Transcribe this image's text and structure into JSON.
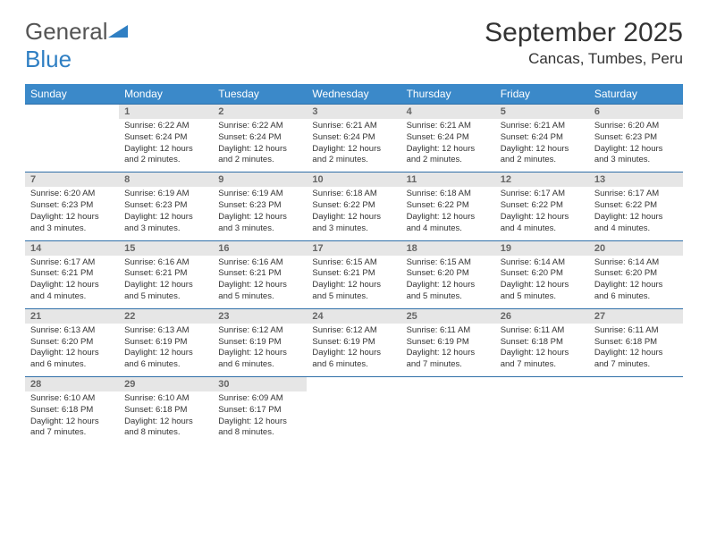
{
  "logo": {
    "word1": "General",
    "word2": "Blue",
    "logo_color": "#2f7fc3"
  },
  "title": "September 2025",
  "location": "Cancas, Tumbes, Peru",
  "header_bg": "#3b89c9",
  "daynum_bg": "#e6e6e6",
  "border_color": "#2f6fa8",
  "text_color": "#333333",
  "day_names": [
    "Sunday",
    "Monday",
    "Tuesday",
    "Wednesday",
    "Thursday",
    "Friday",
    "Saturday"
  ],
  "weeks": [
    [
      {
        "n": "",
        "lines": []
      },
      {
        "n": "1",
        "lines": [
          "Sunrise: 6:22 AM",
          "Sunset: 6:24 PM",
          "Daylight: 12 hours",
          "and 2 minutes."
        ]
      },
      {
        "n": "2",
        "lines": [
          "Sunrise: 6:22 AM",
          "Sunset: 6:24 PM",
          "Daylight: 12 hours",
          "and 2 minutes."
        ]
      },
      {
        "n": "3",
        "lines": [
          "Sunrise: 6:21 AM",
          "Sunset: 6:24 PM",
          "Daylight: 12 hours",
          "and 2 minutes."
        ]
      },
      {
        "n": "4",
        "lines": [
          "Sunrise: 6:21 AM",
          "Sunset: 6:24 PM",
          "Daylight: 12 hours",
          "and 2 minutes."
        ]
      },
      {
        "n": "5",
        "lines": [
          "Sunrise: 6:21 AM",
          "Sunset: 6:24 PM",
          "Daylight: 12 hours",
          "and 2 minutes."
        ]
      },
      {
        "n": "6",
        "lines": [
          "Sunrise: 6:20 AM",
          "Sunset: 6:23 PM",
          "Daylight: 12 hours",
          "and 3 minutes."
        ]
      }
    ],
    [
      {
        "n": "7",
        "lines": [
          "Sunrise: 6:20 AM",
          "Sunset: 6:23 PM",
          "Daylight: 12 hours",
          "and 3 minutes."
        ]
      },
      {
        "n": "8",
        "lines": [
          "Sunrise: 6:19 AM",
          "Sunset: 6:23 PM",
          "Daylight: 12 hours",
          "and 3 minutes."
        ]
      },
      {
        "n": "9",
        "lines": [
          "Sunrise: 6:19 AM",
          "Sunset: 6:23 PM",
          "Daylight: 12 hours",
          "and 3 minutes."
        ]
      },
      {
        "n": "10",
        "lines": [
          "Sunrise: 6:18 AM",
          "Sunset: 6:22 PM",
          "Daylight: 12 hours",
          "and 3 minutes."
        ]
      },
      {
        "n": "11",
        "lines": [
          "Sunrise: 6:18 AM",
          "Sunset: 6:22 PM",
          "Daylight: 12 hours",
          "and 4 minutes."
        ]
      },
      {
        "n": "12",
        "lines": [
          "Sunrise: 6:17 AM",
          "Sunset: 6:22 PM",
          "Daylight: 12 hours",
          "and 4 minutes."
        ]
      },
      {
        "n": "13",
        "lines": [
          "Sunrise: 6:17 AM",
          "Sunset: 6:22 PM",
          "Daylight: 12 hours",
          "and 4 minutes."
        ]
      }
    ],
    [
      {
        "n": "14",
        "lines": [
          "Sunrise: 6:17 AM",
          "Sunset: 6:21 PM",
          "Daylight: 12 hours",
          "and 4 minutes."
        ]
      },
      {
        "n": "15",
        "lines": [
          "Sunrise: 6:16 AM",
          "Sunset: 6:21 PM",
          "Daylight: 12 hours",
          "and 5 minutes."
        ]
      },
      {
        "n": "16",
        "lines": [
          "Sunrise: 6:16 AM",
          "Sunset: 6:21 PM",
          "Daylight: 12 hours",
          "and 5 minutes."
        ]
      },
      {
        "n": "17",
        "lines": [
          "Sunrise: 6:15 AM",
          "Sunset: 6:21 PM",
          "Daylight: 12 hours",
          "and 5 minutes."
        ]
      },
      {
        "n": "18",
        "lines": [
          "Sunrise: 6:15 AM",
          "Sunset: 6:20 PM",
          "Daylight: 12 hours",
          "and 5 minutes."
        ]
      },
      {
        "n": "19",
        "lines": [
          "Sunrise: 6:14 AM",
          "Sunset: 6:20 PM",
          "Daylight: 12 hours",
          "and 5 minutes."
        ]
      },
      {
        "n": "20",
        "lines": [
          "Sunrise: 6:14 AM",
          "Sunset: 6:20 PM",
          "Daylight: 12 hours",
          "and 6 minutes."
        ]
      }
    ],
    [
      {
        "n": "21",
        "lines": [
          "Sunrise: 6:13 AM",
          "Sunset: 6:20 PM",
          "Daylight: 12 hours",
          "and 6 minutes."
        ]
      },
      {
        "n": "22",
        "lines": [
          "Sunrise: 6:13 AM",
          "Sunset: 6:19 PM",
          "Daylight: 12 hours",
          "and 6 minutes."
        ]
      },
      {
        "n": "23",
        "lines": [
          "Sunrise: 6:12 AM",
          "Sunset: 6:19 PM",
          "Daylight: 12 hours",
          "and 6 minutes."
        ]
      },
      {
        "n": "24",
        "lines": [
          "Sunrise: 6:12 AM",
          "Sunset: 6:19 PM",
          "Daylight: 12 hours",
          "and 6 minutes."
        ]
      },
      {
        "n": "25",
        "lines": [
          "Sunrise: 6:11 AM",
          "Sunset: 6:19 PM",
          "Daylight: 12 hours",
          "and 7 minutes."
        ]
      },
      {
        "n": "26",
        "lines": [
          "Sunrise: 6:11 AM",
          "Sunset: 6:18 PM",
          "Daylight: 12 hours",
          "and 7 minutes."
        ]
      },
      {
        "n": "27",
        "lines": [
          "Sunrise: 6:11 AM",
          "Sunset: 6:18 PM",
          "Daylight: 12 hours",
          "and 7 minutes."
        ]
      }
    ],
    [
      {
        "n": "28",
        "lines": [
          "Sunrise: 6:10 AM",
          "Sunset: 6:18 PM",
          "Daylight: 12 hours",
          "and 7 minutes."
        ]
      },
      {
        "n": "29",
        "lines": [
          "Sunrise: 6:10 AM",
          "Sunset: 6:18 PM",
          "Daylight: 12 hours",
          "and 8 minutes."
        ]
      },
      {
        "n": "30",
        "lines": [
          "Sunrise: 6:09 AM",
          "Sunset: 6:17 PM",
          "Daylight: 12 hours",
          "and 8 minutes."
        ]
      },
      {
        "n": "",
        "lines": []
      },
      {
        "n": "",
        "lines": []
      },
      {
        "n": "",
        "lines": []
      },
      {
        "n": "",
        "lines": []
      }
    ]
  ]
}
